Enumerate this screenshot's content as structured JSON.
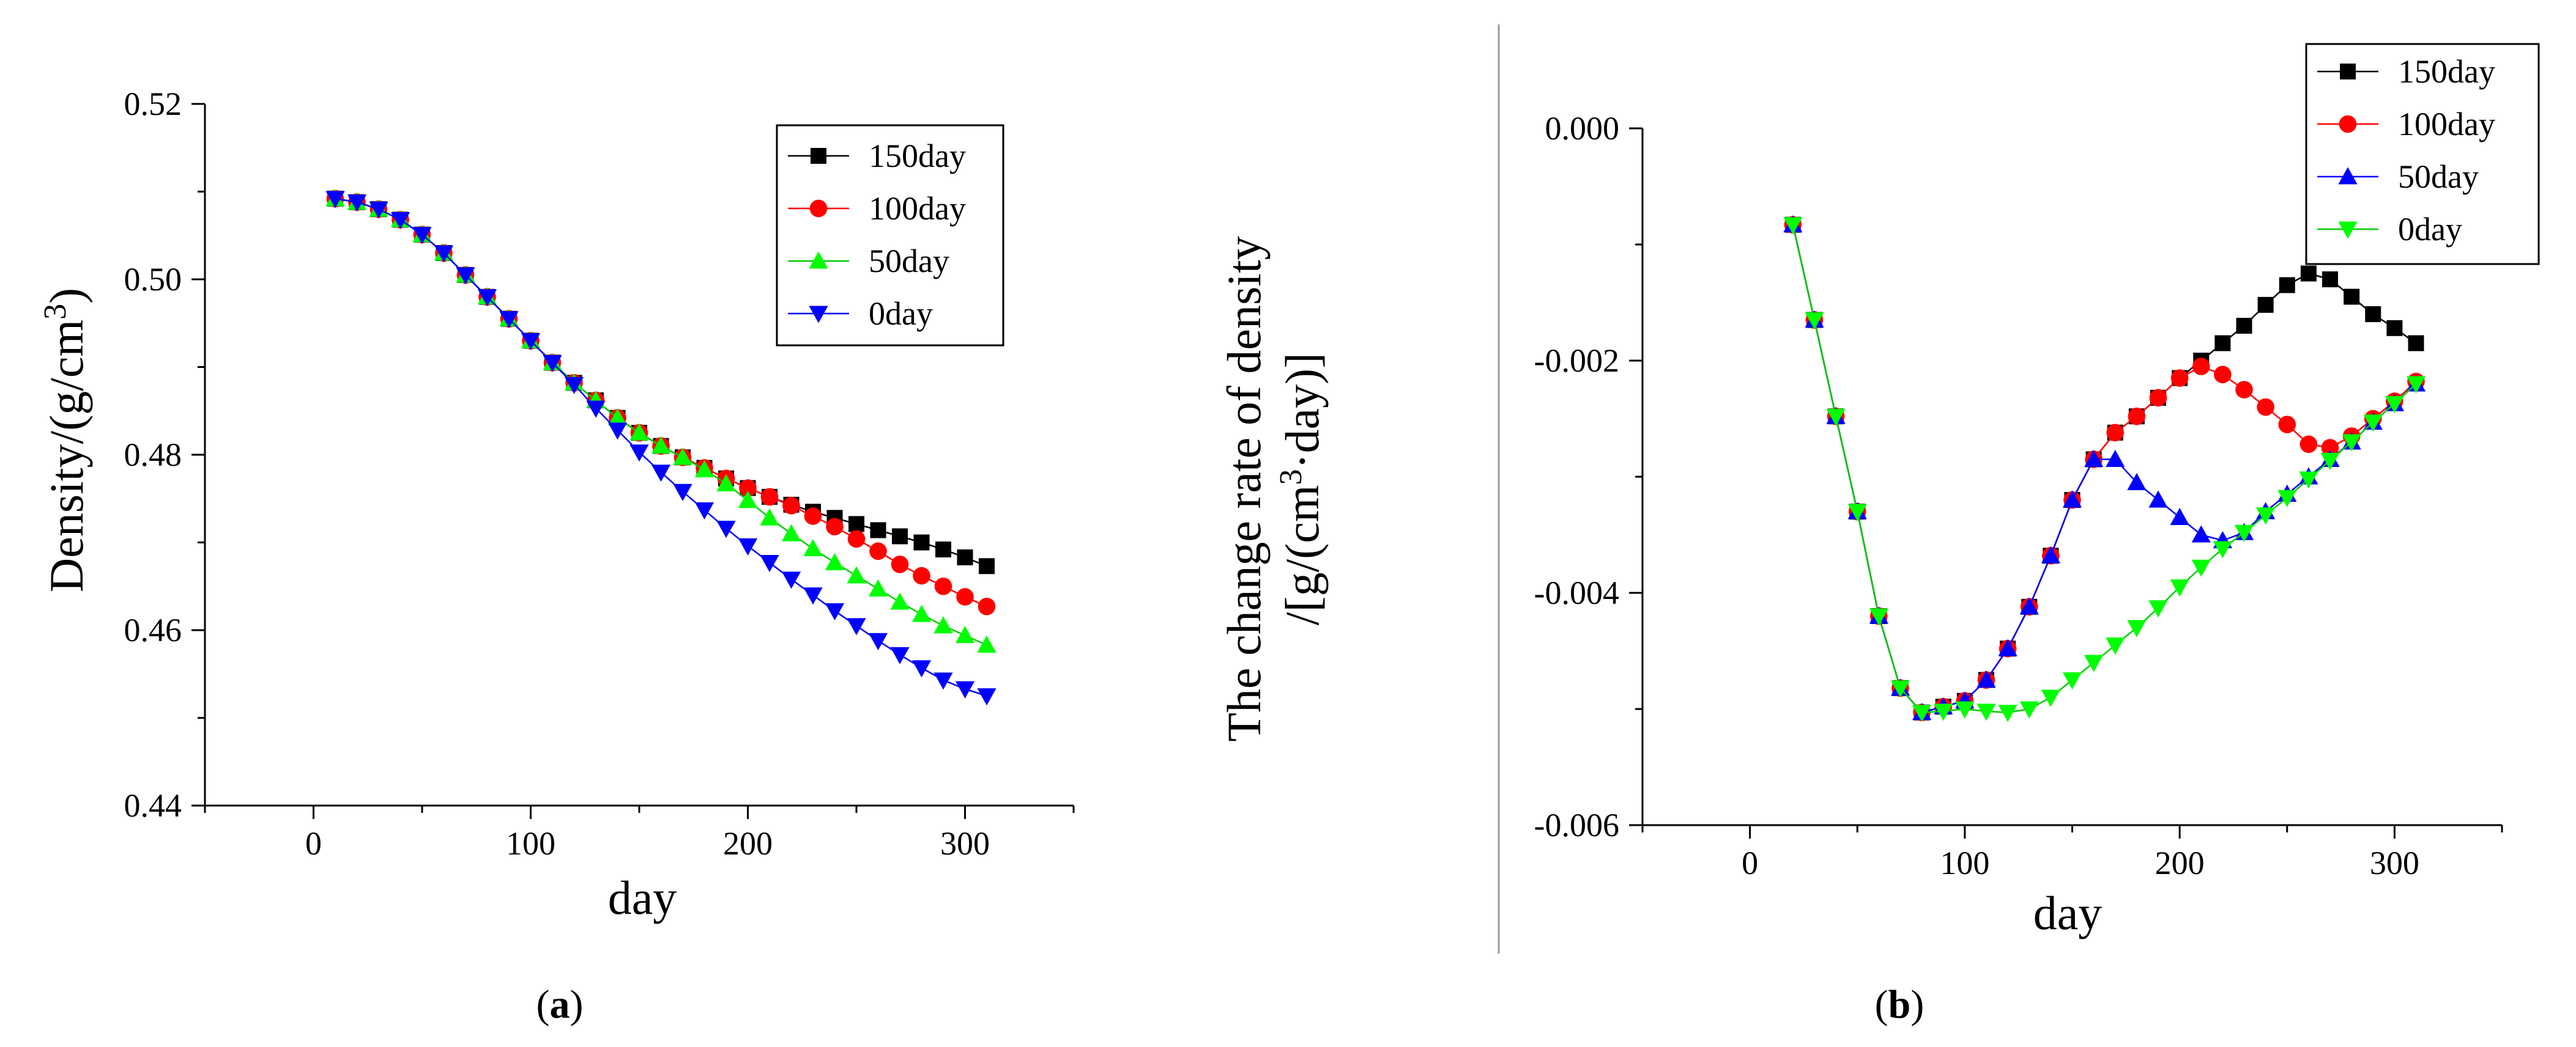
{
  "figure": {
    "panel_a_label": {
      "open": "(",
      "letter": "a",
      "close": ")"
    },
    "panel_b_label": {
      "open": "(",
      "letter": "b",
      "close": ")"
    }
  },
  "chart_data": [
    {
      "type": "scatter",
      "panel": "a",
      "title": "",
      "xlabel": "day",
      "ylabel": "Density/(g/cm3)",
      "ylabel_parts": {
        "main": "Density/(g/cm",
        "sup": "3",
        "end": ")"
      },
      "xlim": [
        -50,
        350
      ],
      "ylim": [
        0.44,
        0.52
      ],
      "xticks": [
        0,
        100,
        200,
        300
      ],
      "xtick_labels": [
        "0",
        "100",
        "200",
        "300"
      ],
      "yticks": [
        0.44,
        0.46,
        0.48,
        0.5,
        0.52
      ],
      "ytick_labels": [
        "0.44",
        "0.46",
        "0.48",
        "0.50",
        "0.52"
      ],
      "legend_position": "top-right",
      "series": [
        {
          "name": "150day",
          "marker": "square",
          "color": "#000000",
          "line_color": "#000000",
          "x": [
            10,
            20,
            30,
            40,
            50,
            60,
            70,
            80,
            90,
            100,
            110,
            120,
            130,
            140,
            150,
            160,
            170,
            180,
            190,
            200,
            210,
            220,
            230,
            240,
            250,
            260,
            270,
            280,
            290,
            300,
            310
          ],
          "y": [
            0.5092,
            0.5088,
            0.508,
            0.5068,
            0.5051,
            0.503,
            0.5005,
            0.498,
            0.4955,
            0.493,
            0.4905,
            0.4882,
            0.4862,
            0.4842,
            0.4825,
            0.481,
            0.4797,
            0.4785,
            0.4773,
            0.4762,
            0.4752,
            0.4743,
            0.4735,
            0.4728,
            0.4721,
            0.4714,
            0.4707,
            0.47,
            0.4692,
            0.4683,
            0.4673
          ]
        },
        {
          "name": "100day",
          "marker": "circle",
          "color": "#ff0000",
          "line_color": "#ff0000",
          "x": [
            10,
            20,
            30,
            40,
            50,
            60,
            70,
            80,
            90,
            100,
            110,
            120,
            130,
            140,
            150,
            160,
            170,
            180,
            190,
            200,
            210,
            220,
            230,
            240,
            250,
            260,
            270,
            280,
            290,
            300,
            310
          ],
          "y": [
            0.5092,
            0.5088,
            0.508,
            0.5068,
            0.5051,
            0.503,
            0.5005,
            0.498,
            0.4955,
            0.493,
            0.4905,
            0.4882,
            0.4862,
            0.4842,
            0.4825,
            0.481,
            0.4797,
            0.4785,
            0.4773,
            0.4762,
            0.4752,
            0.4742,
            0.473,
            0.4718,
            0.4704,
            0.469,
            0.4675,
            0.4662,
            0.465,
            0.4638,
            0.4627
          ]
        },
        {
          "name": "50day",
          "marker": "triangle-up",
          "color": "#00ff00",
          "line_color": "#00cc00",
          "x": [
            10,
            20,
            30,
            40,
            50,
            60,
            70,
            80,
            90,
            100,
            110,
            120,
            130,
            140,
            150,
            160,
            170,
            180,
            190,
            200,
            210,
            220,
            230,
            240,
            250,
            260,
            270,
            280,
            290,
            300,
            310
          ],
          "y": [
            0.5092,
            0.5088,
            0.508,
            0.5068,
            0.5051,
            0.503,
            0.5005,
            0.498,
            0.4955,
            0.493,
            0.4905,
            0.4882,
            0.4862,
            0.4842,
            0.4825,
            0.481,
            0.4797,
            0.4783,
            0.4767,
            0.4748,
            0.4728,
            0.471,
            0.4693,
            0.4677,
            0.4662,
            0.4647,
            0.4632,
            0.4618,
            0.4605,
            0.4594,
            0.4583
          ]
        },
        {
          "name": "0day",
          "marker": "triangle-down",
          "color": "#0000ff",
          "line_color": "#0000ff",
          "x": [
            10,
            20,
            30,
            40,
            50,
            60,
            70,
            80,
            90,
            100,
            110,
            120,
            130,
            140,
            150,
            160,
            170,
            180,
            190,
            200,
            210,
            220,
            230,
            240,
            250,
            260,
            270,
            280,
            290,
            300,
            310
          ],
          "y": [
            0.5092,
            0.5088,
            0.508,
            0.5068,
            0.5051,
            0.503,
            0.5005,
            0.498,
            0.4955,
            0.493,
            0.4905,
            0.488,
            0.4853,
            0.4828,
            0.4803,
            0.478,
            0.4758,
            0.4737,
            0.4716,
            0.4696,
            0.4677,
            0.4658,
            0.464,
            0.4622,
            0.4605,
            0.4588,
            0.4572,
            0.4557,
            0.4543,
            0.4533,
            0.4525
          ]
        }
      ]
    },
    {
      "type": "scatter",
      "panel": "b",
      "title": "",
      "xlabel": "day",
      "ylabel": "The change rate of density /[g/(cm3·day)]",
      "ylabel_parts": {
        "line1": "The change rate of density",
        "line2_main": "/[g/(cm",
        "line2_sup": "3",
        "line2_end": "·day)]"
      },
      "xlim": [
        -50,
        350
      ],
      "ylim": [
        -0.006,
        0.0
      ],
      "xticks": [
        0,
        100,
        200,
        300
      ],
      "xtick_labels": [
        "0",
        "100",
        "200",
        "300"
      ],
      "yticks": [
        -0.006,
        -0.004,
        -0.002,
        0.0
      ],
      "ytick_labels": [
        "-0.006",
        "-0.004",
        "-0.002",
        "0.000"
      ],
      "legend_position": "top-right",
      "series": [
        {
          "name": "150day",
          "marker": "square",
          "color": "#000000",
          "line_color": "#000000",
          "x": [
            20,
            30,
            40,
            50,
            60,
            70,
            80,
            90,
            100,
            110,
            120,
            130,
            140,
            150,
            160,
            170,
            180,
            190,
            200,
            210,
            220,
            230,
            240,
            250,
            260,
            270,
            280,
            290,
            300,
            310
          ],
          "y": [
            -0.00083,
            -0.00165,
            -0.00248,
            -0.0033,
            -0.0042,
            -0.00482,
            -0.00503,
            -0.00498,
            -0.00493,
            -0.00475,
            -0.00448,
            -0.00412,
            -0.00368,
            -0.0032,
            -0.00285,
            -0.00262,
            -0.00248,
            -0.00232,
            -0.00215,
            -0.002,
            -0.00185,
            -0.0017,
            -0.00152,
            -0.00135,
            -0.00125,
            -0.0013,
            -0.00145,
            -0.0016,
            -0.00172,
            -0.00185
          ]
        },
        {
          "name": "100day",
          "marker": "circle",
          "color": "#ff0000",
          "line_color": "#ff0000",
          "x": [
            20,
            30,
            40,
            50,
            60,
            70,
            80,
            90,
            100,
            110,
            120,
            130,
            140,
            150,
            160,
            170,
            180,
            190,
            200,
            210,
            220,
            230,
            240,
            250,
            260,
            270,
            280,
            290,
            300,
            310
          ],
          "y": [
            -0.00083,
            -0.00165,
            -0.00248,
            -0.0033,
            -0.0042,
            -0.00482,
            -0.00503,
            -0.00498,
            -0.00493,
            -0.00475,
            -0.00448,
            -0.00412,
            -0.00368,
            -0.0032,
            -0.00285,
            -0.00262,
            -0.00248,
            -0.00232,
            -0.00215,
            -0.00205,
            -0.00212,
            -0.00225,
            -0.0024,
            -0.00255,
            -0.00272,
            -0.00275,
            -0.00265,
            -0.0025,
            -0.00235,
            -0.00218
          ]
        },
        {
          "name": "50day",
          "marker": "triangle-up",
          "color": "#0000ff",
          "line_color": "#0000ff",
          "x": [
            20,
            30,
            40,
            50,
            60,
            70,
            80,
            90,
            100,
            110,
            120,
            130,
            140,
            150,
            160,
            170,
            180,
            190,
            200,
            210,
            220,
            230,
            240,
            250,
            260,
            270,
            280,
            290,
            300,
            310
          ],
          "y": [
            -0.00083,
            -0.00165,
            -0.00248,
            -0.0033,
            -0.0042,
            -0.00482,
            -0.00503,
            -0.00498,
            -0.00493,
            -0.00475,
            -0.00448,
            -0.00412,
            -0.00368,
            -0.0032,
            -0.00285,
            -0.00285,
            -0.00305,
            -0.0032,
            -0.00335,
            -0.0035,
            -0.00355,
            -0.00348,
            -0.0033,
            -0.00315,
            -0.003,
            -0.00285,
            -0.0027,
            -0.00253,
            -0.00237,
            -0.0022
          ]
        },
        {
          "name": "0day",
          "marker": "triangle-down",
          "color": "#00ff00",
          "line_color": "#00cc00",
          "x": [
            20,
            30,
            40,
            50,
            60,
            70,
            80,
            90,
            100,
            110,
            120,
            130,
            140,
            150,
            160,
            170,
            180,
            190,
            200,
            210,
            220,
            230,
            240,
            250,
            260,
            270,
            280,
            290,
            300,
            310
          ],
          "y": [
            -0.00083,
            -0.00165,
            -0.00248,
            -0.0033,
            -0.0042,
            -0.00482,
            -0.00503,
            -0.00502,
            -0.005,
            -0.00502,
            -0.00503,
            -0.005,
            -0.0049,
            -0.00475,
            -0.0046,
            -0.00445,
            -0.0043,
            -0.00413,
            -0.00395,
            -0.00378,
            -0.00362,
            -0.00348,
            -0.00333,
            -0.00318,
            -0.00302,
            -0.00286,
            -0.0027,
            -0.00253,
            -0.00237,
            -0.0022
          ]
        }
      ]
    }
  ]
}
